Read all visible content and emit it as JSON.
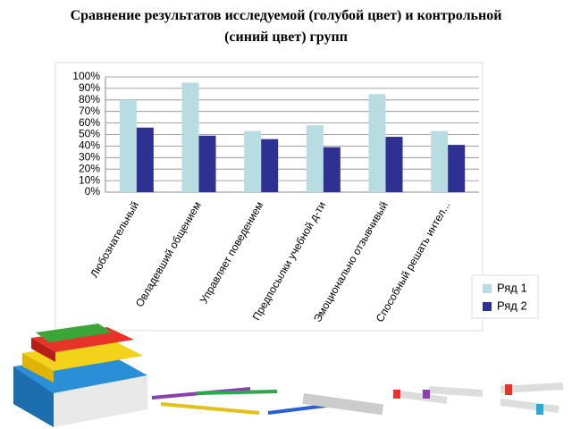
{
  "chart_data": {
    "type": "bar",
    "title": "Сравнение результатов исследуемой (голубой цвет)  и контрольной (синий цвет) групп",
    "categories": [
      "Любознательный",
      "Овладевший общением",
      "Управляет поведением",
      "Предпосылки учебной д-ти",
      "Эмоционально отзывчивый",
      "Способный решать интел..."
    ],
    "series": [
      {
        "name": "Ряд 1",
        "color": "#b7dde3",
        "values": [
          80,
          95,
          53,
          58,
          85,
          53
        ]
      },
      {
        "name": "Ряд 2",
        "color": "#2e3192",
        "values": [
          56,
          49,
          46,
          39,
          48,
          41
        ]
      }
    ],
    "ylim": [
      0,
      100
    ],
    "yticks": [
      {
        "value": 0,
        "label": "0%"
      },
      {
        "value": 10,
        "label": "10%"
      },
      {
        "value": 20,
        "label": "20%"
      },
      {
        "value": 30,
        "label": "30%"
      },
      {
        "value": 40,
        "label": "40%"
      },
      {
        "value": 50,
        "label": "50%"
      },
      {
        "value": 60,
        "label": "60%"
      },
      {
        "value": 70,
        "label": "70%"
      },
      {
        "value": 80,
        "label": "80%"
      },
      {
        "value": 90,
        "label": "90%"
      },
      {
        "value": 100,
        "label": "100%"
      }
    ],
    "grid": true,
    "legend": "right"
  }
}
